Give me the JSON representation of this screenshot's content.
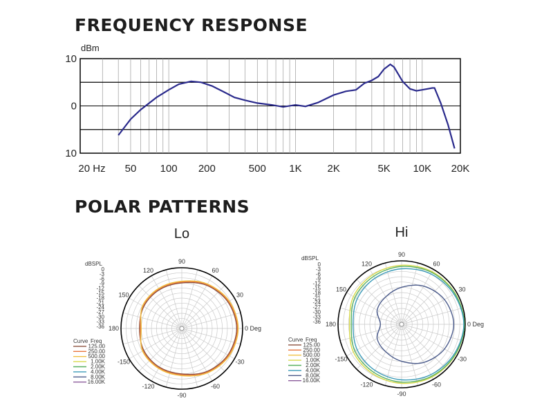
{
  "frequency_response_title": "FREQUENCY RESPONSE",
  "polar_patterns_title": "POLAR PATTERNS",
  "colors": {
    "fr_line": "#2a2a8c",
    "c125": "#8a4f3c",
    "c250": "#e8743b",
    "c500": "#f0c040",
    "c1k": "#d8d84a",
    "c2k": "#58b060",
    "c4k": "#3a9ab8",
    "c8k": "#4a5a8a",
    "c16k": "#8a5a9a"
  },
  "chart_data": [
    {
      "type": "line",
      "title": "FREQUENCY RESPONSE",
      "ylabel": "dBm",
      "xscale": "log",
      "xlim": [
        20,
        20000
      ],
      "ylim": [
        -10,
        10
      ],
      "x_tick_labels": [
        "20 Hz",
        "50",
        "100",
        "200",
        "500",
        "1K",
        "2K",
        "5K",
        "10K",
        "20K"
      ],
      "x_tick_values": [
        20,
        50,
        100,
        200,
        500,
        1000,
        2000,
        5000,
        10000,
        20000
      ],
      "y_tick_labels": [
        "10",
        "0",
        "10"
      ],
      "y_tick_values": [
        10,
        0,
        -10
      ],
      "grid": true,
      "series": [
        {
          "x": [
            40,
            50,
            60,
            80,
            100,
            120,
            150,
            180,
            220,
            270,
            330,
            400,
            500,
            650,
            800,
            1000,
            1200,
            1500,
            2000,
            2500,
            3000,
            3500,
            4000,
            4500,
            5000,
            5600,
            6000,
            7000,
            8000,
            9000,
            10000,
            11000,
            12000,
            12500,
            14000,
            16000,
            18000
          ],
          "y": [
            -6.2,
            -2.8,
            -0.8,
            1.8,
            3.4,
            4.6,
            5.2,
            5.0,
            4.2,
            3.0,
            1.8,
            1.2,
            0.6,
            0.2,
            -0.2,
            0.2,
            -0.1,
            0.7,
            2.3,
            3.1,
            3.4,
            4.8,
            5.4,
            6.2,
            7.8,
            8.8,
            8.2,
            5.2,
            3.6,
            3.2,
            3.4,
            3.6,
            3.8,
            3.8,
            0.6,
            -4.0,
            -9.0
          ]
        }
      ]
    },
    {
      "type": "polar",
      "title": "Lo",
      "ylabel": "dBSPL",
      "r_tick_labels": [
        "0",
        "-3",
        "-6",
        "-9",
        "-12",
        "-15",
        "-18",
        "-21",
        "-24",
        "-27",
        "-30",
        "-33",
        "-36"
      ],
      "angle_labels": [
        "90",
        "60",
        "30",
        "0 Deg",
        "-30",
        "-60",
        "-90",
        "-120",
        "-150",
        "180",
        "150",
        "120"
      ],
      "legend_header": [
        "Curve",
        "Freq"
      ],
      "legend_freqs": [
        "125.00",
        "250.00",
        "500.00",
        "1.00K",
        "2.00K",
        "4.00K",
        "8.00K",
        "16.00K"
      ],
      "series": [
        {
          "name": "125.00",
          "angles_deg": [
            0,
            30,
            60,
            90,
            120,
            150,
            180,
            210,
            240,
            270,
            300,
            330
          ],
          "levels_db": [
            -3.5,
            -4.5,
            -6.5,
            -9.0,
            -9.5,
            -10.0,
            -11.0,
            -10.0,
            -9.5,
            -9.0,
            -6.5,
            -4.5
          ]
        },
        {
          "name": "250.00",
          "angles_deg": [
            0,
            30,
            60,
            90,
            120,
            150,
            180,
            210,
            240,
            270,
            300,
            330
          ],
          "levels_db": [
            -3.0,
            -4.0,
            -6.0,
            -8.5,
            -9.0,
            -9.5,
            -11.5,
            -9.5,
            -9.0,
            -8.5,
            -6.0,
            -4.0
          ]
        },
        {
          "name": "500.00",
          "angles_deg": [
            0,
            30,
            60,
            90,
            120,
            150,
            180,
            210,
            240,
            270,
            300,
            330
          ],
          "levels_db": [
            -2.6,
            -3.6,
            -5.6,
            -8.0,
            -8.6,
            -9.2,
            -12.0,
            -9.2,
            -8.6,
            -8.0,
            -5.6,
            -3.6
          ]
        }
      ]
    },
    {
      "type": "polar",
      "title": "Hi",
      "ylabel": "dBSPL",
      "r_tick_labels": [
        "0",
        "-3",
        "-6",
        "-9",
        "-12",
        "-15",
        "-18",
        "-21",
        "-24",
        "-27",
        "-30",
        "-33",
        "-36"
      ],
      "angle_labels": [
        "90",
        "60",
        "30",
        "0 Deg",
        "-30",
        "-60",
        "-90",
        "-120",
        "-150",
        "180",
        "150",
        "120"
      ],
      "legend_header": [
        "Curve",
        "Freq"
      ],
      "legend_freqs": [
        "125.00",
        "250.00",
        "500.00",
        "1.00K",
        "2.00K",
        "4.00K",
        "8.00K",
        "16.00K"
      ],
      "series": [
        {
          "name": "1.00K",
          "angles_deg": [
            0,
            30,
            60,
            90,
            120,
            150,
            180,
            210,
            240,
            270,
            300,
            330
          ],
          "levels_db": [
            -0.5,
            -1.0,
            -1.5,
            -2.5,
            -3.5,
            -4.5,
            -6.5,
            -4.5,
            -3.5,
            -2.5,
            -1.5,
            -1.0
          ]
        },
        {
          "name": "2.00K",
          "angles_deg": [
            0,
            30,
            60,
            90,
            120,
            150,
            180,
            210,
            240,
            270,
            300,
            330
          ],
          "levels_db": [
            -0.5,
            -1.2,
            -2.0,
            -3.2,
            -4.5,
            -5.5,
            -7.5,
            -5.5,
            -4.5,
            -3.2,
            -2.0,
            -1.2
          ]
        },
        {
          "name": "4.00K",
          "angles_deg": [
            0,
            30,
            60,
            90,
            120,
            150,
            180,
            210,
            240,
            270,
            300,
            330
          ],
          "levels_db": [
            -0.8,
            -1.8,
            -3.0,
            -4.5,
            -5.8,
            -7.0,
            -8.5,
            -7.0,
            -5.8,
            -4.5,
            -3.0,
            -1.8
          ]
        },
        {
          "name": "8.00K",
          "angles_deg": [
            0,
            30,
            60,
            90,
            120,
            150,
            180,
            210,
            240,
            270,
            300,
            330
          ],
          "levels_db": [
            -6.5,
            -8.0,
            -11.0,
            -15.0,
            -18.0,
            -20.0,
            -24.0,
            -20.0,
            -18.0,
            -15.0,
            -11.0,
            -8.0
          ]
        }
      ]
    }
  ]
}
